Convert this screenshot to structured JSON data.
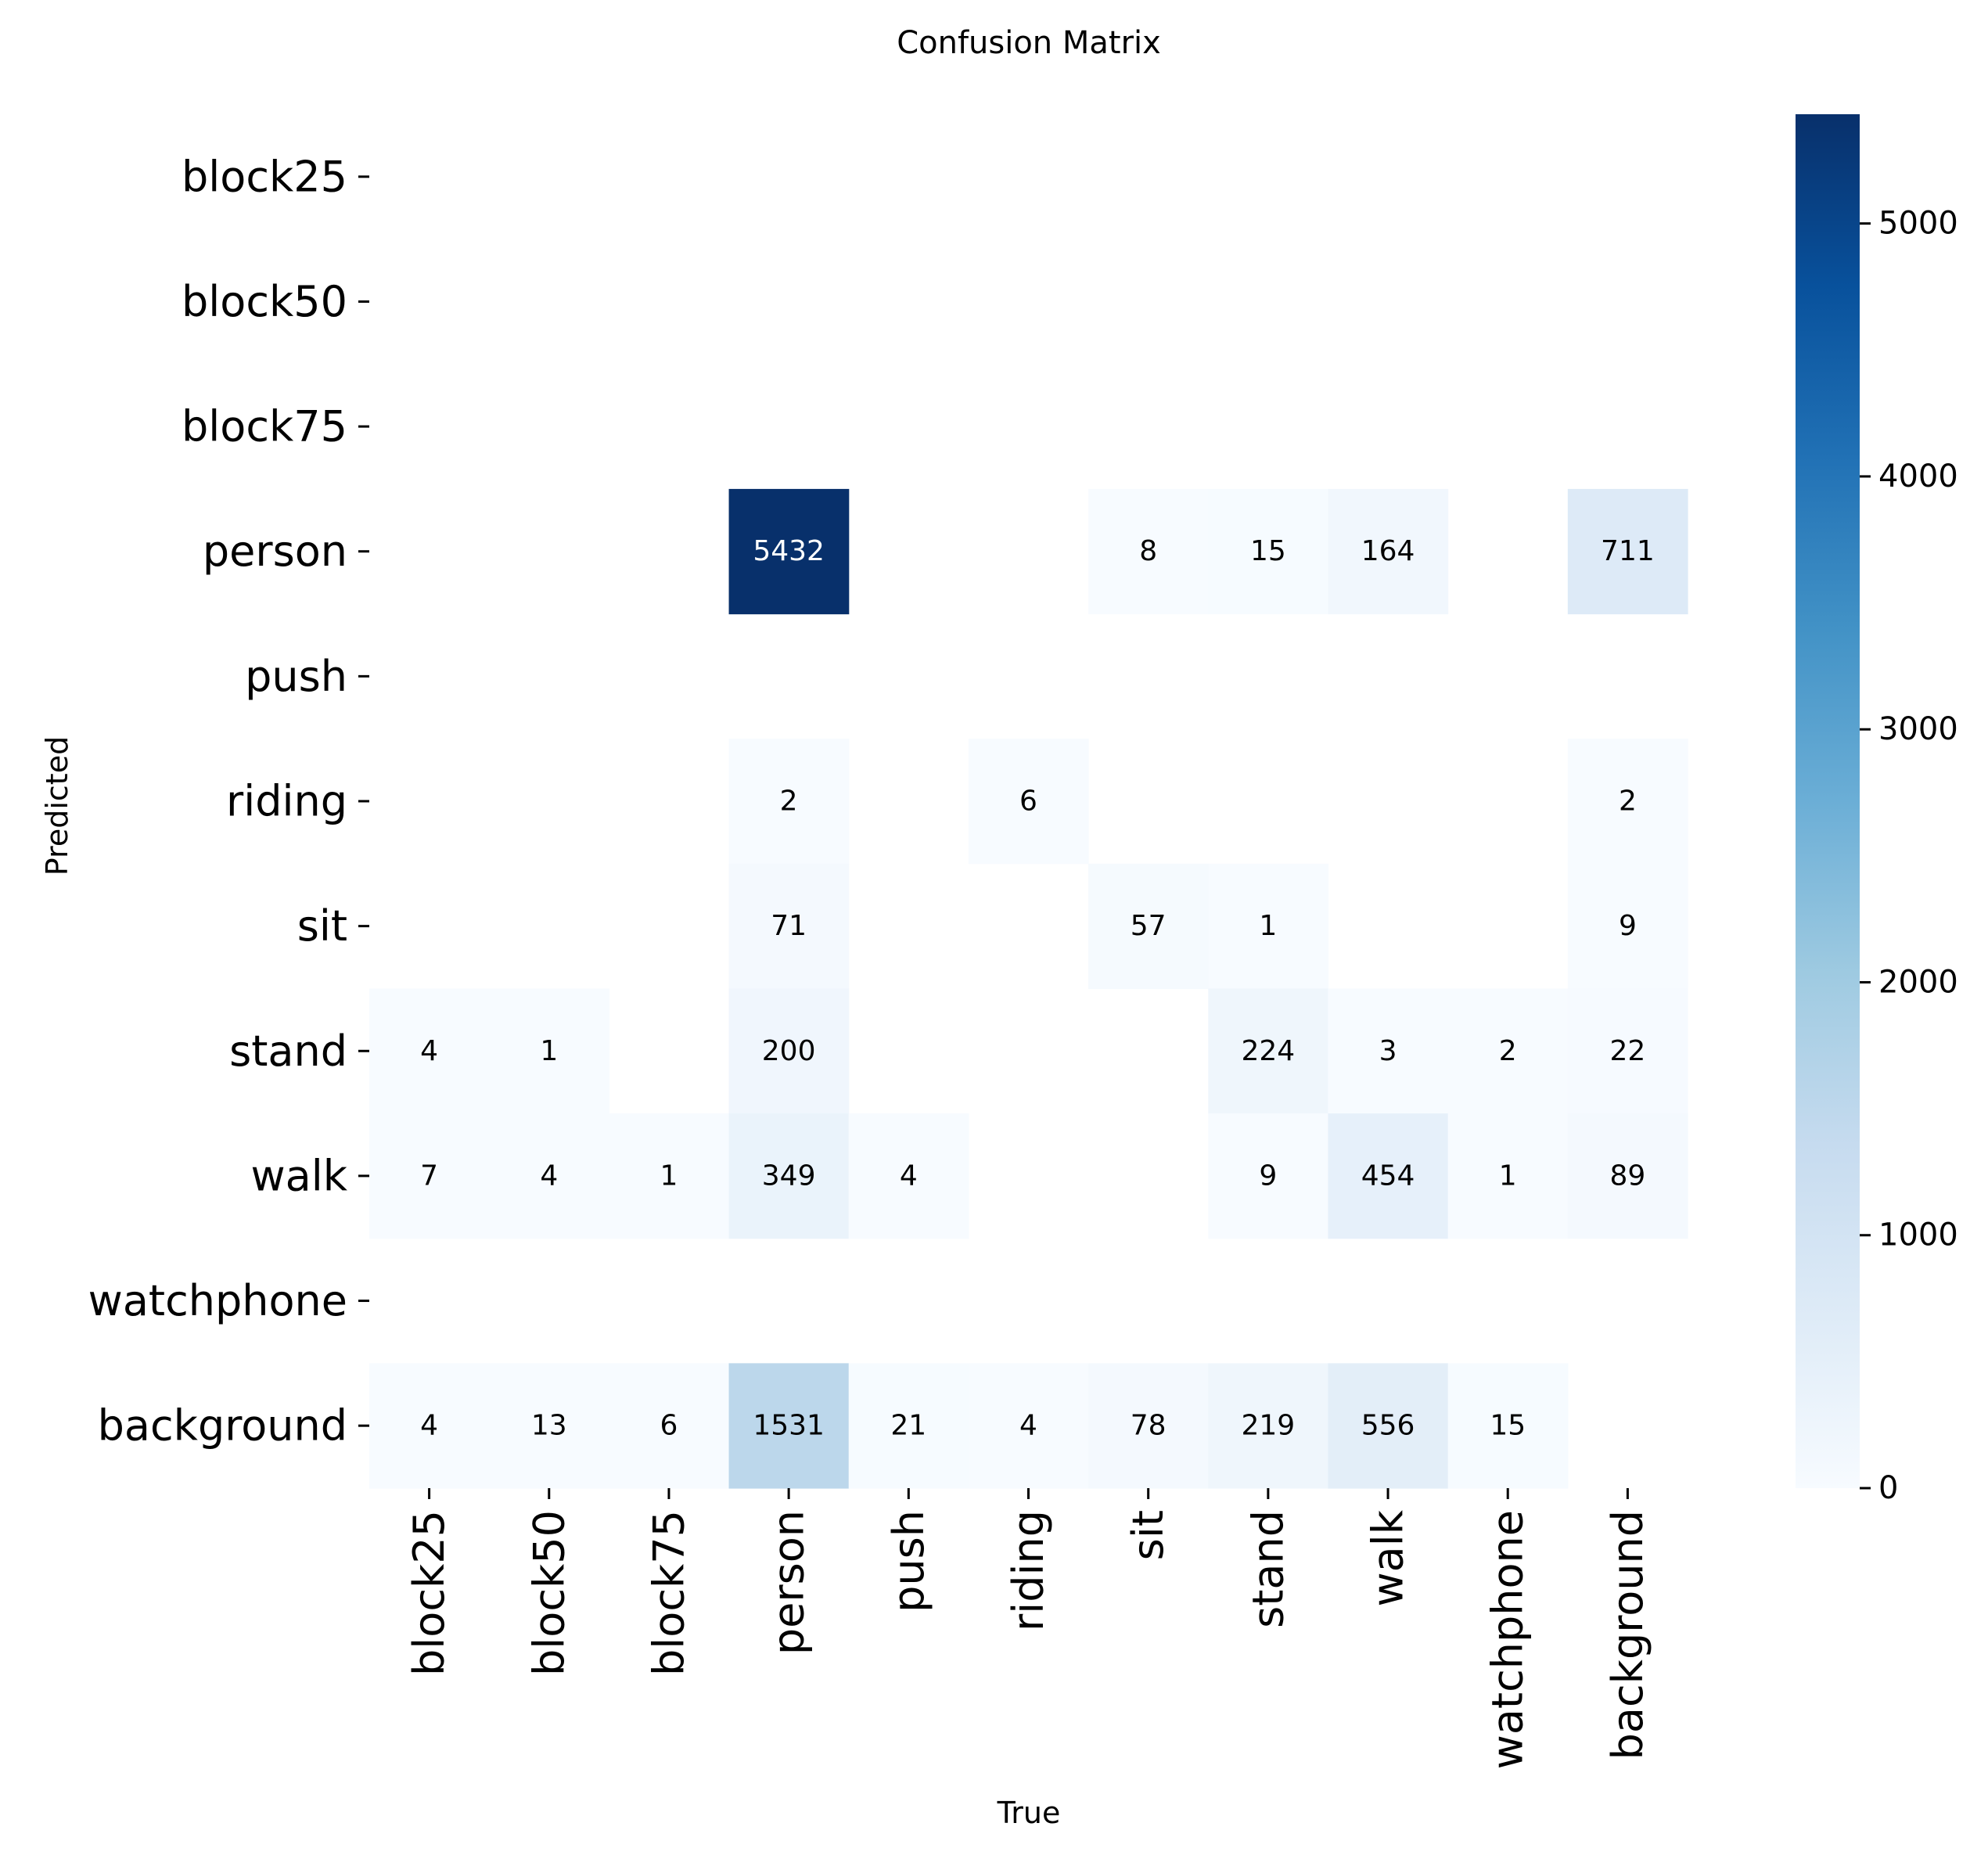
{
  "chart_data": {
    "type": "heatmap",
    "title": "Confusion Matrix",
    "xlabel": "True",
    "ylabel": "Predicted",
    "x_categories": [
      "block25",
      "block50",
      "block75",
      "person",
      "push",
      "riding",
      "sit",
      "stand",
      "walk",
      "watchphone",
      "background"
    ],
    "y_categories": [
      "block25",
      "block50",
      "block75",
      "person",
      "push",
      "riding",
      "sit",
      "stand",
      "walk",
      "watchphone",
      "background"
    ],
    "values": [
      [
        null,
        null,
        null,
        null,
        null,
        null,
        null,
        null,
        null,
        null,
        null
      ],
      [
        null,
        null,
        null,
        null,
        null,
        null,
        null,
        null,
        null,
        null,
        null
      ],
      [
        null,
        null,
        null,
        null,
        null,
        null,
        null,
        null,
        null,
        null,
        null
      ],
      [
        null,
        null,
        null,
        5432,
        null,
        null,
        8,
        15,
        164,
        null,
        711
      ],
      [
        null,
        null,
        null,
        null,
        null,
        null,
        null,
        null,
        null,
        null,
        null
      ],
      [
        null,
        null,
        null,
        2,
        null,
        6,
        null,
        null,
        null,
        null,
        2
      ],
      [
        null,
        null,
        null,
        71,
        null,
        null,
        57,
        1,
        null,
        null,
        9
      ],
      [
        4,
        1,
        null,
        200,
        null,
        null,
        null,
        224,
        3,
        2,
        22
      ],
      [
        7,
        4,
        1,
        349,
        4,
        null,
        null,
        9,
        454,
        1,
        89
      ],
      [
        null,
        null,
        null,
        null,
        null,
        null,
        null,
        null,
        null,
        null,
        null
      ],
      [
        4,
        13,
        6,
        1531,
        21,
        4,
        78,
        219,
        556,
        15,
        null
      ]
    ],
    "colormap": "Blues",
    "colorbar": {
      "min": 0,
      "max": 5432,
      "ticks": [
        0,
        1000,
        2000,
        3000,
        4000,
        5000
      ],
      "tick_labels": [
        "0",
        "1000",
        "2000",
        "3000",
        "4000",
        "5000"
      ],
      "placement": "right"
    },
    "grid": false,
    "colors": {
      "low": "#f7fbff",
      "high": "#08306b",
      "text_dark": "#000000",
      "text_light": "#ffffff"
    }
  }
}
